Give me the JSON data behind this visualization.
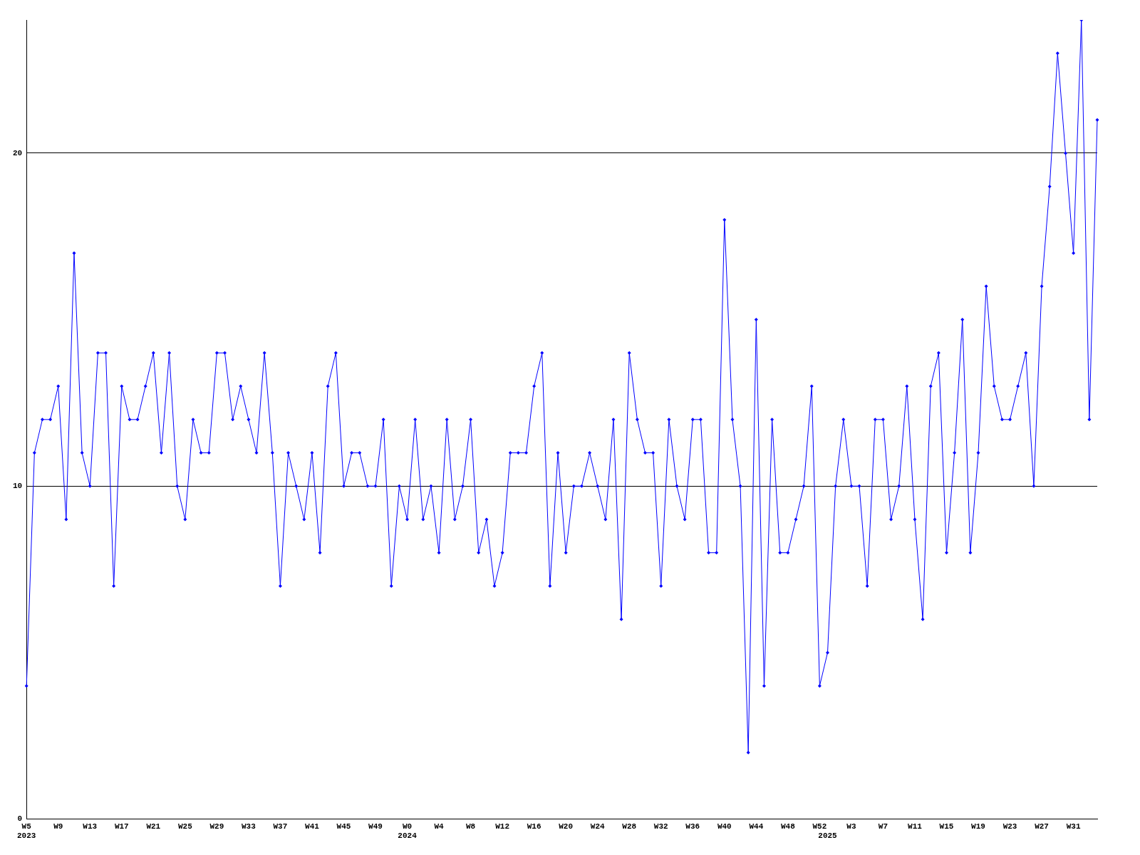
{
  "chart_data": {
    "type": "line",
    "categories": [
      "W5\n2023",
      null,
      null,
      null,
      "W9",
      null,
      null,
      null,
      "W13",
      null,
      null,
      null,
      "W17",
      null,
      null,
      null,
      "W21",
      null,
      null,
      null,
      "W25",
      null,
      null,
      null,
      "W29",
      null,
      null,
      null,
      "W33",
      null,
      null,
      null,
      "W37",
      null,
      null,
      null,
      "W41",
      null,
      null,
      null,
      "W45",
      null,
      null,
      null,
      "W49",
      null,
      null,
      null,
      "W0\n2024",
      null,
      null,
      null,
      "W4",
      null,
      null,
      null,
      "W8",
      null,
      null,
      null,
      "W12",
      null,
      null,
      null,
      "W16",
      null,
      null,
      null,
      "W20",
      null,
      null,
      null,
      "W24",
      null,
      null,
      null,
      "W28",
      null,
      null,
      null,
      "W32",
      null,
      null,
      null,
      "W36",
      null,
      null,
      null,
      "W40",
      null,
      null,
      null,
      "W44",
      null,
      null,
      null,
      "W48",
      null,
      null,
      null,
      "W52",
      "\n2025",
      null,
      null,
      "W3",
      null,
      null,
      null,
      "W7",
      null,
      null,
      null,
      "W11",
      null,
      null,
      null,
      "W15",
      null,
      null,
      null,
      "W19",
      null,
      null,
      null,
      "W23",
      null,
      null,
      null,
      "W27",
      null,
      null,
      null,
      "W31",
      null,
      null,
      null
    ],
    "series": [
      {
        "color": "#0000ff",
        "values": [
          4,
          11,
          12,
          12,
          13,
          9,
          17,
          11,
          10,
          14,
          14,
          7,
          13,
          12,
          12,
          13,
          14,
          11,
          14,
          10,
          9,
          12,
          11,
          11,
          14,
          14,
          12,
          13,
          12,
          11,
          14,
          11,
          7,
          11,
          10,
          9,
          11,
          8,
          13,
          14,
          10,
          11,
          11,
          10,
          10,
          12,
          7,
          10,
          9,
          12,
          9,
          10,
          8,
          12,
          9,
          10,
          12,
          8,
          9,
          7,
          8,
          11,
          11,
          11,
          13,
          14,
          7,
          11,
          8,
          10,
          10,
          11,
          10,
          9,
          12,
          6,
          14,
          12,
          11,
          11,
          7,
          12,
          10,
          9,
          12,
          12,
          8,
          8,
          18,
          12,
          10,
          2,
          15,
          4,
          12,
          8,
          8,
          9,
          10,
          13,
          4,
          5,
          10,
          12,
          10,
          10,
          7,
          12,
          12,
          9,
          10,
          13,
          9,
          6,
          13,
          14,
          8,
          11,
          15,
          8,
          11,
          16,
          13,
          12,
          12,
          13,
          14,
          10,
          16,
          19,
          23,
          20,
          17,
          24,
          12,
          21
        ]
      }
    ],
    "ylim": [
      0,
      24
    ],
    "yticks": [
      0,
      10,
      20
    ],
    "grid": "y",
    "marker": "diamond",
    "line_style": "solid"
  }
}
